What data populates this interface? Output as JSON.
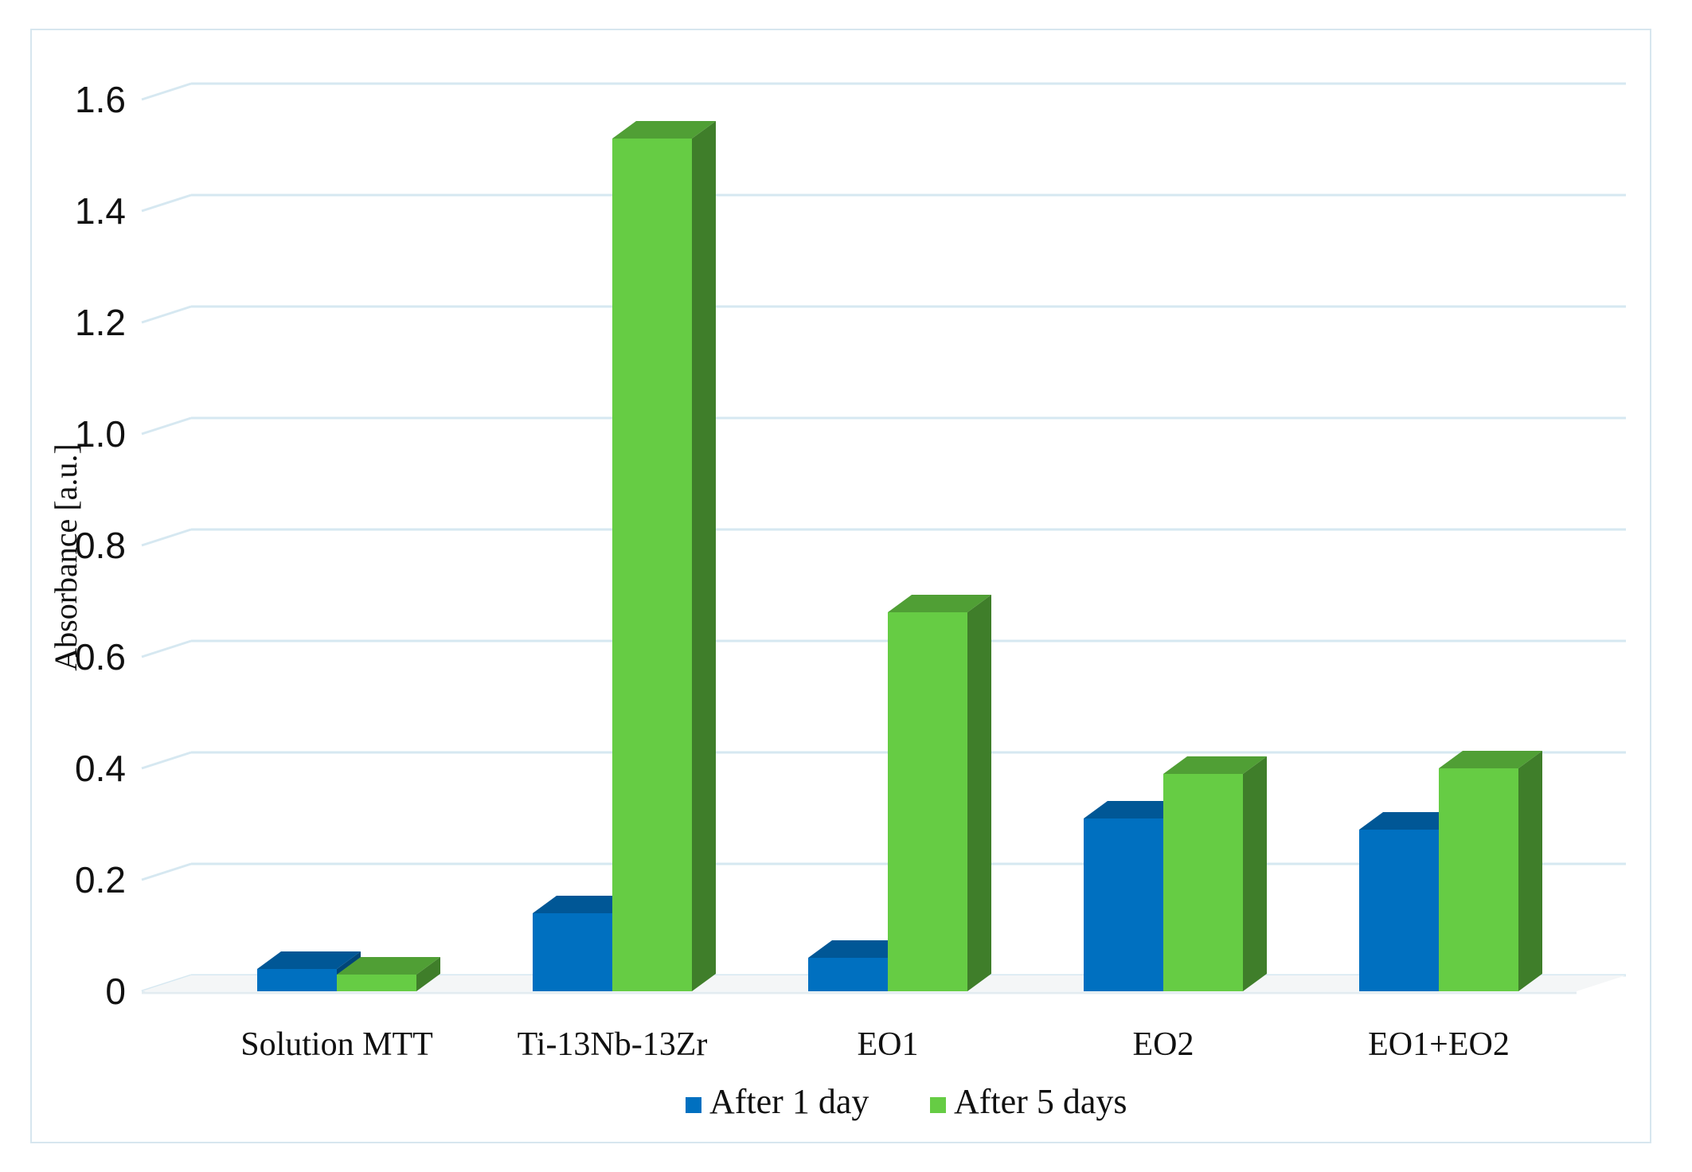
{
  "chart_data": {
    "type": "bar",
    "title": "",
    "xlabel": "",
    "ylabel": "Absorbance [a.u.]",
    "categories": [
      "Solution MTT",
      "Ti-13Nb-13Zr",
      "EO1",
      "EO2",
      "EO1+EO2"
    ],
    "series": [
      {
        "name": "After 1 day",
        "values": [
          0.04,
          0.14,
          0.06,
          0.31,
          0.29
        ],
        "color": "#0070c0"
      },
      {
        "name": "After 5 days",
        "values": [
          0.03,
          1.53,
          0.68,
          0.39,
          0.4
        ],
        "color": "#66cc44"
      }
    ],
    "yticks": [
      "0",
      "0.2",
      "0.4",
      "0.6",
      "0.8",
      "1.0",
      "1.2",
      "1.4",
      "1.6"
    ],
    "ylim": [
      0,
      1.6
    ],
    "grid": true,
    "style": "3d-clustered-columns",
    "legend": "bottom-center"
  }
}
